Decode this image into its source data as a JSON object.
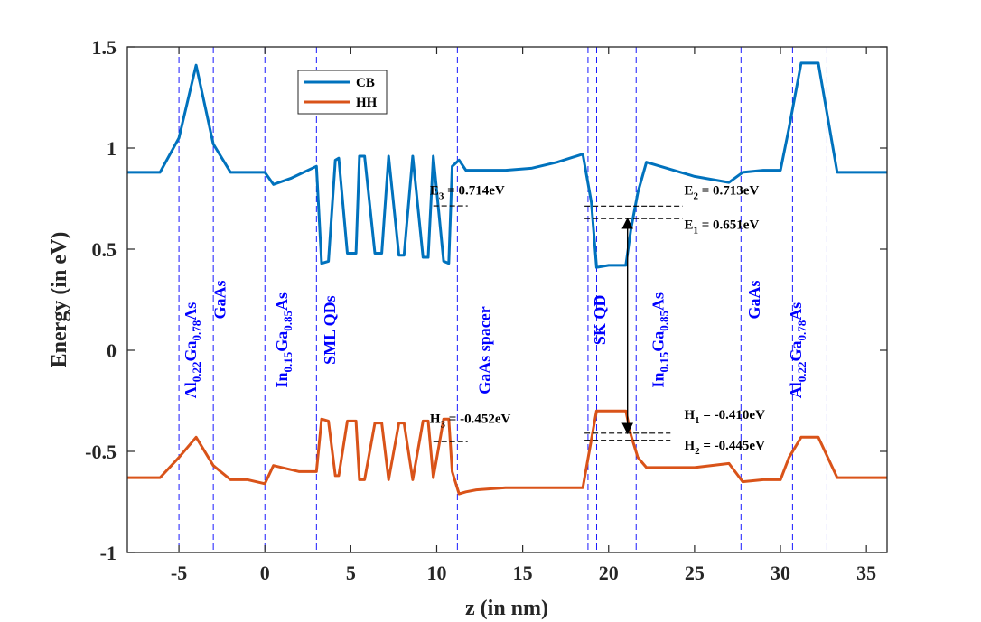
{
  "chart_data": {
    "type": "line",
    "xlabel": "z (in nm)",
    "ylabel": "Energy (in eV)",
    "xlim": [
      -8,
      36.2
    ],
    "ylim": [
      -1,
      1.5
    ],
    "xticks": [
      -5,
      0,
      5,
      10,
      15,
      20,
      25,
      30,
      35
    ],
    "xtick_labels": [
      "-5",
      "0",
      "5",
      "10",
      "15",
      "20",
      "25",
      "30",
      "35"
    ],
    "yticks": [
      -1,
      -0.5,
      0,
      0.5,
      1,
      1.5
    ],
    "ytick_labels": [
      "-1",
      "-0.5",
      "0",
      "0.5",
      "1",
      "1.5"
    ],
    "grid": false,
    "legend": {
      "position": "top-left-inside",
      "entries": [
        "CB",
        "HH"
      ]
    },
    "colors": {
      "CB": "#0072BD",
      "HH": "#D95319",
      "interfaces": "#0000FF",
      "levels": "#000000"
    },
    "series": [
      {
        "name": "CB",
        "x": [
          -8,
          -6.1,
          -5,
          -4,
          -3,
          -2,
          -1,
          0,
          0.5,
          1.5,
          2,
          3,
          3.3,
          3.7,
          4.1,
          4.3,
          4.8,
          5.3,
          5.5,
          5.8,
          6.4,
          6.8,
          7.2,
          7.8,
          8.1,
          8.6,
          9.2,
          9.5,
          9.8,
          10.4,
          10.7,
          10.9,
          11.3,
          11.7,
          12.3,
          14,
          15.5,
          17,
          18.5,
          19,
          19.3,
          20,
          21,
          21.3,
          21.7,
          22.2,
          25,
          27,
          27.8,
          29,
          30,
          30.5,
          31.2,
          32.2,
          33.3,
          36.2
        ],
        "y": [
          0.88,
          0.88,
          1.05,
          1.41,
          1.02,
          0.88,
          0.88,
          0.88,
          0.82,
          0.85,
          0.87,
          0.91,
          0.43,
          0.44,
          0.94,
          0.95,
          0.48,
          0.48,
          0.96,
          0.96,
          0.48,
          0.48,
          0.96,
          0.47,
          0.47,
          0.96,
          0.46,
          0.46,
          0.96,
          0.44,
          0.43,
          0.91,
          0.94,
          0.89,
          0.89,
          0.89,
          0.9,
          0.93,
          0.97,
          0.73,
          0.41,
          0.42,
          0.42,
          0.6,
          0.78,
          0.93,
          0.86,
          0.83,
          0.88,
          0.89,
          0.89,
          1.1,
          1.42,
          1.42,
          0.88,
          0.88
        ]
      },
      {
        "name": "HH",
        "x": [
          -8,
          -6.1,
          -5,
          -4,
          -3,
          -2,
          -1,
          0,
          0.5,
          1.5,
          2,
          3,
          3.3,
          3.7,
          4.1,
          4.3,
          4.8,
          5.3,
          5.5,
          5.8,
          6.4,
          6.8,
          7.2,
          7.8,
          8.1,
          8.6,
          9.2,
          9.5,
          9.8,
          10.4,
          10.7,
          10.9,
          11.3,
          11.7,
          12.3,
          14,
          15.5,
          17,
          18.5,
          19,
          19.3,
          20,
          21,
          21.3,
          21.7,
          22.2,
          25,
          27,
          27.8,
          29,
          30,
          30.5,
          31.2,
          32.2,
          33.3,
          36.2
        ],
        "y": [
          -0.63,
          -0.63,
          -0.53,
          -0.43,
          -0.57,
          -0.64,
          -0.64,
          -0.66,
          -0.57,
          -0.59,
          -0.6,
          -0.6,
          -0.34,
          -0.35,
          -0.62,
          -0.62,
          -0.35,
          -0.35,
          -0.64,
          -0.64,
          -0.36,
          -0.36,
          -0.64,
          -0.36,
          -0.36,
          -0.64,
          -0.35,
          -0.35,
          -0.63,
          -0.34,
          -0.34,
          -0.6,
          -0.71,
          -0.7,
          -0.69,
          -0.68,
          -0.68,
          -0.68,
          -0.68,
          -0.44,
          -0.3,
          -0.3,
          -0.3,
          -0.42,
          -0.53,
          -0.58,
          -0.58,
          -0.56,
          -0.65,
          -0.64,
          -0.64,
          -0.53,
          -0.43,
          -0.43,
          -0.63,
          -0.63
        ]
      }
    ],
    "interfaces": [
      -5,
      -3,
      0,
      3,
      11.2,
      18.8,
      19.3,
      21.6,
      27.7,
      30.7,
      32.7
    ],
    "energy_levels": [
      {
        "name": "E3",
        "label_main": "E",
        "label_sub": "3",
        "label_rest": " = 0.714eV",
        "y": 0.714,
        "x1": 9.8,
        "x2": 11.8,
        "label_x": 9.6,
        "label_y": 0.77
      },
      {
        "name": "E2",
        "label_main": "E",
        "label_sub": "2",
        "label_rest": " = 0.713eV",
        "y": 0.713,
        "x1": 18.6,
        "x2": 24.3,
        "label_x": 24.4,
        "label_y": 0.77
      },
      {
        "name": "E1",
        "label_main": "E",
        "label_sub": "1",
        "label_rest": " = 0.651eV",
        "y": 0.651,
        "x1": 18.6,
        "x2": 24.3,
        "label_x": 24.4,
        "label_y": 0.6
      },
      {
        "name": "H3",
        "label_main": "H",
        "label_sub": "3",
        "label_rest": " = -0.452eV",
        "y": -0.452,
        "x1": 9.8,
        "x2": 11.8,
        "label_x": 9.6,
        "label_y": -0.36
      },
      {
        "name": "H1",
        "label_main": "H",
        "label_sub": "1",
        "label_rest": " = -0.410eV",
        "y": -0.41,
        "x1": 18.6,
        "x2": 23.6,
        "label_x": 24.4,
        "label_y": -0.34
      },
      {
        "name": "H2",
        "label_main": "H",
        "label_sub": "2",
        "label_rest": " = -0.445eV",
        "y": -0.445,
        "x1": 18.6,
        "x2": 23.6,
        "label_x": 24.4,
        "label_y": -0.49
      }
    ],
    "transition_arrow": {
      "x": 21.1,
      "y_top": 0.651,
      "y_bottom": -0.41
    },
    "region_labels": [
      {
        "name": "algaas-left",
        "parts": [
          [
            "Al",
            ""
          ],
          [
            "0.22",
            "sub"
          ],
          [
            "Ga",
            ""
          ],
          [
            "0.78",
            "sub"
          ],
          [
            "As",
            ""
          ]
        ],
        "x": -4,
        "y": 0.0
      },
      {
        "name": "gaas-left",
        "parts": [
          [
            "GaAs",
            ""
          ]
        ],
        "x": -2.3,
        "y": 0.25
      },
      {
        "name": "ingaas-left",
        "parts": [
          [
            "In",
            ""
          ],
          [
            "0.15",
            "sub"
          ],
          [
            "Ga",
            ""
          ],
          [
            "0.85",
            "sub"
          ],
          [
            "As",
            ""
          ]
        ],
        "x": 1.3,
        "y": 0.05
      },
      {
        "name": "sml-qds",
        "parts": [
          [
            "SML QDs",
            ""
          ]
        ],
        "x": 4.1,
        "y": 0.1
      },
      {
        "name": "gaas-spacer",
        "parts": [
          [
            "GaAs spacer",
            ""
          ]
        ],
        "x": 13.1,
        "y": 0.0
      },
      {
        "name": "sk-qd",
        "parts": [
          [
            "SK QD",
            ""
          ]
        ],
        "x": 19.8,
        "y": 0.15
      },
      {
        "name": "ingaas-right",
        "parts": [
          [
            "In",
            ""
          ],
          [
            "0.15",
            "sub"
          ],
          [
            "Ga",
            ""
          ],
          [
            "0.85",
            "sub"
          ],
          [
            "As",
            ""
          ]
        ],
        "x": 23.2,
        "y": 0.05
      },
      {
        "name": "gaas-right",
        "parts": [
          [
            "GaAs",
            ""
          ]
        ],
        "x": 28.8,
        "y": 0.25
      },
      {
        "name": "algaas-right",
        "parts": [
          [
            "Al",
            ""
          ],
          [
            "0.22",
            "sub"
          ],
          [
            "Ga",
            ""
          ],
          [
            "0.78",
            "sub"
          ],
          [
            "As",
            ""
          ]
        ],
        "x": 31.2,
        "y": 0.0
      }
    ]
  }
}
